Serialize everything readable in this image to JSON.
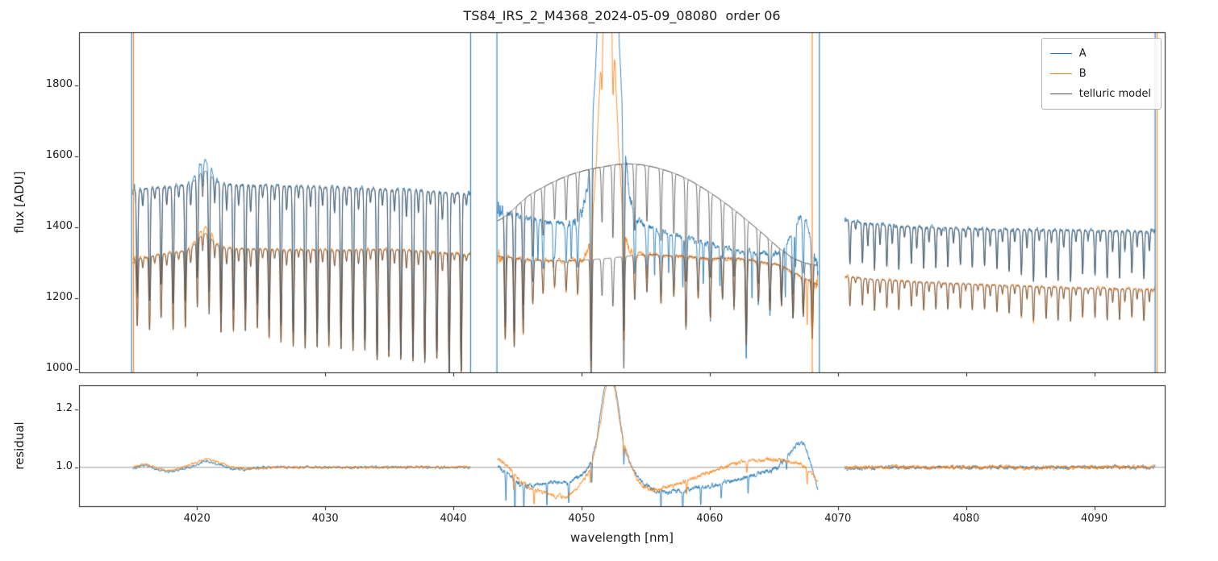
{
  "chart_data": {
    "type": "line",
    "title": "TS84_IRS_2_M4368_2024-05-09_08080  order 06",
    "xlabel": "wavelength [nm]",
    "ylabel_top": "flux [ADU]",
    "ylabel_bottom": "residual",
    "xlim": [
      4010.8,
      4095.5
    ],
    "ylim_top": [
      990,
      1950
    ],
    "ylim_bottom": [
      0.865,
      1.285
    ],
    "xticks": [
      4020,
      4030,
      4040,
      4050,
      4060,
      4070,
      4080,
      4090
    ],
    "yticks_top": [
      1000,
      1200,
      1400,
      1600,
      1800
    ],
    "yticks_bottom": [
      1.0,
      1.2
    ],
    "reference_line_residual": 1.0,
    "legend": [
      {
        "label": "A",
        "color": "#1f77b4"
      },
      {
        "label": "B",
        "color": "#ff7f0e"
      },
      {
        "label": "telluric model",
        "color": "#545454"
      }
    ],
    "edge_spikes": [
      {
        "x": 4014.9,
        "series": "A"
      },
      {
        "x": 4015.05,
        "series": "B"
      },
      {
        "x": 4041.35,
        "series": "A"
      },
      {
        "x": 4043.4,
        "series": "A"
      },
      {
        "x": 4068.0,
        "series": "B"
      },
      {
        "x": 4068.55,
        "series": "A"
      },
      {
        "x": 4094.75,
        "series": "A"
      },
      {
        "x": 4094.9,
        "series": "B"
      }
    ],
    "segments": [
      {
        "x_start": 4015.0,
        "x_end": 4041.3,
        "cont_A": [
          [
            4015,
            1505
          ],
          [
            4017,
            1512
          ],
          [
            4019,
            1518
          ],
          [
            4021,
            1520
          ],
          [
            4023,
            1520
          ],
          [
            4026,
            1517
          ],
          [
            4029,
            1514
          ],
          [
            4032,
            1511
          ],
          [
            4035,
            1507
          ],
          [
            4038,
            1501
          ],
          [
            4041.3,
            1494
          ]
        ],
        "cont_B": [
          [
            4015,
            1310
          ],
          [
            4017,
            1322
          ],
          [
            4019,
            1333
          ],
          [
            4021,
            1341
          ],
          [
            4023,
            1340
          ],
          [
            4026,
            1337
          ],
          [
            4029,
            1336
          ],
          [
            4032,
            1336
          ],
          [
            4035,
            1337
          ],
          [
            4038,
            1331
          ],
          [
            4041.3,
            1323
          ]
        ],
        "bump": {
          "center": 4020.6,
          "sigma": 0.55,
          "amp_A": 70,
          "amp_B": 62,
          "amp_model_A": 38,
          "amp_model_B": 42
        },
        "comb": {
          "start": 4015.35,
          "spacing": 0.935,
          "sigma": 0.055,
          "depth_start": 0.18,
          "depth_end": 0.335,
          "jitter": 0.05,
          "minor_depth": 0.035
        },
        "b_depth_scale": 0.75,
        "noise_A": 7,
        "noise_B": 6,
        "edge_noise": [
          5,
          2
        ],
        "residual_A": {
          "points": [
            [
              4015,
              0.995
            ],
            [
              4016,
              1.005
            ],
            [
              4017,
              0.99
            ],
            [
              4018,
              0.985
            ],
            [
              4019,
              0.995
            ],
            [
              4020,
              1.01
            ],
            [
              4020.7,
              1.02
            ],
            [
              4021.5,
              1.012
            ],
            [
              4022.5,
              0.998
            ],
            [
              4023.5,
              0.992
            ],
            [
              4025,
              1.0
            ],
            [
              4028,
              1.0
            ],
            [
              4033,
              1.0
            ],
            [
              4041.3,
              1.0
            ]
          ],
          "noise": 0.005
        },
        "residual_B": {
          "points": [
            [
              4015,
              1.0
            ],
            [
              4016,
              1.008
            ],
            [
              4017,
              0.996
            ],
            [
              4018,
              0.99
            ],
            [
              4019,
              1.002
            ],
            [
              4020,
              1.018
            ],
            [
              4020.7,
              1.03
            ],
            [
              4021.5,
              1.02
            ],
            [
              4022.5,
              1.005
            ],
            [
              4024,
              0.995
            ],
            [
              4026,
              1.0
            ],
            [
              4033,
              1.0
            ],
            [
              4041.3,
              1.002
            ]
          ],
          "noise": 0.005
        }
      },
      {
        "x_start": 4043.45,
        "x_end": 4068.45,
        "cont_A": [
          [
            4043.45,
            1450
          ],
          [
            4045,
            1432
          ],
          [
            4047,
            1418
          ],
          [
            4049,
            1412
          ],
          [
            4051,
            1420
          ],
          [
            4053,
            1428
          ],
          [
            4054.5,
            1412
          ],
          [
            4056,
            1390
          ],
          [
            4058,
            1372
          ],
          [
            4060,
            1352
          ],
          [
            4062,
            1338
          ],
          [
            4064,
            1325
          ],
          [
            4065.5,
            1330
          ],
          [
            4066.5,
            1385
          ],
          [
            4067.1,
            1430
          ],
          [
            4067.7,
            1395
          ],
          [
            4068.45,
            1290
          ]
        ],
        "cont_B": [
          [
            4043.45,
            1318
          ],
          [
            4046,
            1308
          ],
          [
            4049,
            1305
          ],
          [
            4052,
            1312
          ],
          [
            4055,
            1322
          ],
          [
            4058,
            1318
          ],
          [
            4060,
            1312
          ],
          [
            4062,
            1312
          ],
          [
            4064,
            1302
          ],
          [
            4065.5,
            1292
          ],
          [
            4066.6,
            1272
          ],
          [
            4067.6,
            1252
          ],
          [
            4068.45,
            1238
          ]
        ],
        "emission": {
          "center": 4052.05,
          "sigma_A": 0.75,
          "amp_A": 1000,
          "sigma_B": 0.6,
          "amp_B": 850
        },
        "arc": [
          [
            4043.45,
            1418
          ],
          [
            4046,
            1492
          ],
          [
            4049,
            1546
          ],
          [
            4052,
            1572
          ],
          [
            4054,
            1578
          ],
          [
            4056,
            1566
          ],
          [
            4058,
            1540
          ],
          [
            4060,
            1498
          ],
          [
            4062,
            1446
          ],
          [
            4064,
            1386
          ],
          [
            4066,
            1326
          ],
          [
            4067.2,
            1302
          ],
          [
            4068.45,
            1292
          ]
        ],
        "lines": [
          [
            4044.05,
            0.22
          ],
          [
            4044.75,
            0.24
          ],
          [
            4045.45,
            0.2
          ],
          [
            4046.2,
            0.12
          ],
          [
            4047.0,
            0.09
          ],
          [
            4047.9,
            0.07
          ],
          [
            4048.8,
            0.08
          ],
          [
            4049.7,
            0.09
          ],
          [
            4050.75,
            0.35
          ],
          [
            4051.6,
            0.1
          ],
          [
            4052.45,
            0.13
          ],
          [
            4053.3,
            0.3
          ],
          [
            4054.15,
            0.12
          ],
          [
            4055.1,
            0.1
          ],
          [
            4056.2,
            0.13
          ],
          [
            4057.2,
            0.11
          ],
          [
            4058.15,
            0.19
          ],
          [
            4059.1,
            0.11
          ],
          [
            4060.05,
            0.16
          ],
          [
            4061.0,
            0.11
          ],
          [
            4061.9,
            0.13
          ],
          [
            4062.85,
            0.23
          ],
          [
            4063.8,
            0.11
          ],
          [
            4064.7,
            0.13
          ],
          [
            4065.6,
            0.11
          ],
          [
            4066.5,
            0.13
          ],
          [
            4067.3,
            0.11
          ],
          [
            4068.0,
            0.16
          ]
        ],
        "b_depth_scale": 0.8,
        "spikes_A": [
          [
            4046.6,
            120
          ],
          [
            4047.8,
            100
          ],
          [
            4049.2,
            110
          ],
          [
            4055.7,
            130
          ],
          [
            4056.8,
            110
          ],
          [
            4057.9,
            140
          ],
          [
            4059.5,
            120
          ],
          [
            4060.8,
            110
          ],
          [
            4063.3,
            130
          ],
          [
            4065.9,
            150
          ],
          [
            4066.7,
            120
          ]
        ],
        "spikes_B": [
          [
            4067.6,
            130
          ]
        ],
        "noise_A": 10,
        "noise_B": 7,
        "peak_noise": 18,
        "edge_noise": [
          6,
          5
        ],
        "residual_A": {
          "points": [
            [
              4043.45,
              1.0
            ],
            [
              4044.5,
              0.965
            ],
            [
              4045.5,
              0.935
            ],
            [
              4046.5,
              0.94
            ],
            [
              4047.5,
              0.95
            ],
            [
              4048.5,
              0.945
            ],
            [
              4049.5,
              0.96
            ],
            [
              4050.5,
              1.0
            ],
            [
              4051.2,
              1.1
            ],
            [
              4051.8,
              1.28
            ],
            [
              4052.2,
              1.34
            ],
            [
              4052.7,
              1.26
            ],
            [
              4053.3,
              1.08
            ],
            [
              4054,
              0.995
            ],
            [
              4054.8,
              0.945
            ],
            [
              4055.5,
              0.925
            ],
            [
              4056.5,
              0.915
            ],
            [
              4058,
              0.92
            ],
            [
              4059.5,
              0.93
            ],
            [
              4061,
              0.945
            ],
            [
              4062.5,
              0.96
            ],
            [
              4064,
              0.98
            ],
            [
              4065.3,
              1.0
            ],
            [
              4066.3,
              1.05
            ],
            [
              4067.2,
              1.085
            ],
            [
              4067.7,
              1.04
            ],
            [
              4068.45,
              0.93
            ]
          ],
          "noise": 0.009
        },
        "residual_B": {
          "points": [
            [
              4043.45,
              1.03
            ],
            [
              4044.3,
              1.0
            ],
            [
              4045,
              0.965
            ],
            [
              4046,
              0.93
            ],
            [
              4047,
              0.912
            ],
            [
              4048,
              0.9
            ],
            [
              4049,
              0.902
            ],
            [
              4050,
              0.945
            ],
            [
              4050.8,
              1.01
            ],
            [
              4051.5,
              1.16
            ],
            [
              4052,
              1.3
            ],
            [
              4052.5,
              1.29
            ],
            [
              4053.1,
              1.13
            ],
            [
              4053.8,
              1.015
            ],
            [
              4054.5,
              0.95
            ],
            [
              4055.3,
              0.922
            ],
            [
              4056.5,
              0.93
            ],
            [
              4058,
              0.95
            ],
            [
              4059.5,
              0.975
            ],
            [
              4061,
              1.0
            ],
            [
              4062.5,
              1.018
            ],
            [
              4064,
              1.025
            ],
            [
              4065.5,
              1.025
            ],
            [
              4066.5,
              1.018
            ],
            [
              4067.5,
              1.0
            ],
            [
              4068.45,
              0.952
            ]
          ],
          "noise": 0.008
        },
        "residual_spikes_A": [
          [
            4044.1,
            0.1
          ],
          [
            4044.8,
            0.12
          ],
          [
            4045.5,
            0.09
          ],
          [
            4047.3,
            0.08
          ],
          [
            4049.0,
            0.07
          ],
          [
            4050.8,
            0.09
          ],
          [
            4053.3,
            0.08
          ],
          [
            4056.2,
            0.07
          ],
          [
            4057.9,
            0.07
          ],
          [
            4059.3,
            0.06
          ],
          [
            4060.9,
            0.05
          ],
          [
            4063.0,
            0.06
          ],
          [
            4066.0,
            0.04
          ]
        ],
        "residual_spikes_B": [
          [
            4044.7,
            0.06
          ],
          [
            4046.3,
            0.05
          ],
          [
            4050.7,
            0.05
          ],
          [
            4053.3,
            0.05
          ],
          [
            4058.2,
            0.04
          ],
          [
            4062.9,
            0.04
          ],
          [
            4067.6,
            0.05
          ]
        ]
      },
      {
        "x_start": 4070.55,
        "x_end": 4094.75,
        "cont_A": [
          [
            4070.55,
            1418
          ],
          [
            4073,
            1408
          ],
          [
            4076,
            1401
          ],
          [
            4080,
            1396
          ],
          [
            4084,
            1393
          ],
          [
            4088,
            1391
          ],
          [
            4091,
            1390
          ],
          [
            4094.75,
            1388
          ]
        ],
        "cont_B": [
          [
            4070.55,
            1260
          ],
          [
            4073,
            1252
          ],
          [
            4076,
            1246
          ],
          [
            4080,
            1240
          ],
          [
            4084,
            1234
          ],
          [
            4088,
            1229
          ],
          [
            4091,
            1227
          ],
          [
            4094.75,
            1224
          ]
        ],
        "comb": {
          "start": 4070.95,
          "spacing": 0.955,
          "sigma": 0.05,
          "depth_start": 0.085,
          "depth_end": 0.095,
          "jitter": 0.03,
          "minor_depth": 0.03
        },
        "b_depth_scale": 0.75,
        "noise_A": 7,
        "noise_B": 6,
        "edge_noise": [
          2,
          2
        ],
        "residual_A": {
          "points": [
            [
              4070.55,
              0.995
            ],
            [
              4075,
              1.0
            ],
            [
              4080,
              1.0
            ],
            [
              4085,
              1.0
            ],
            [
              4090,
              1.0
            ],
            [
              4094.75,
              1.0
            ]
          ],
          "noise": 0.007
        },
        "residual_B": {
          "points": [
            [
              4070.55,
              1.0
            ],
            [
              4075,
              1.0
            ],
            [
              4080,
              1.0
            ],
            [
              4085,
              1.0
            ],
            [
              4090,
              1.0
            ],
            [
              4094.75,
              1.002
            ]
          ],
          "noise": 0.008
        }
      }
    ]
  }
}
